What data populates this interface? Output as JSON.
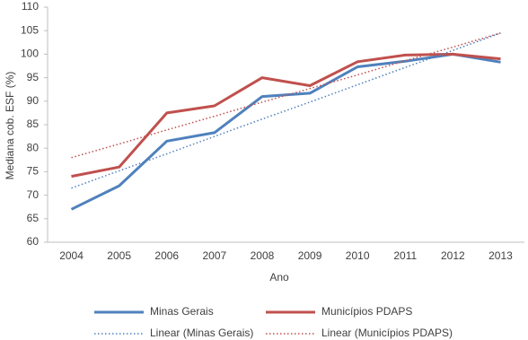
{
  "chart_data": {
    "type": "line",
    "x_label": "Ano",
    "y_label": "Mediana cob. ESF (%)",
    "categories": [
      "2004",
      "2005",
      "2006",
      "2007",
      "2008",
      "2009",
      "2010",
      "2011",
      "2012",
      "2013"
    ],
    "series": [
      {
        "name": "Minas Gerais",
        "color": "#4f81bd",
        "dotted": false,
        "values": [
          67,
          72,
          81.5,
          83.3,
          91,
          91.7,
          97.3,
          98.5,
          100,
          98.3
        ]
      },
      {
        "name": "Municípios PDAPS",
        "color": "#c0504d",
        "dotted": false,
        "values": [
          74,
          76,
          87.5,
          89,
          95,
          93.3,
          98.4,
          99.8,
          100,
          99
        ]
      },
      {
        "name": "Linear (Minas Gerais)",
        "color": "#4f81bd",
        "dotted": true,
        "values": [
          71.5,
          75.2,
          78.8,
          82.5,
          86.2,
          89.8,
          93.5,
          97.2,
          100.8,
          104.5
        ]
      },
      {
        "name": "Linear (Municípios PDAPS)",
        "color": "#c0504d",
        "dotted": true,
        "values": [
          78,
          80.9,
          83.9,
          86.8,
          89.8,
          92.7,
          95.6,
          98.6,
          101.5,
          104.5
        ]
      }
    ],
    "ylim": [
      60,
      110
    ],
    "yticks": [
      60,
      65,
      70,
      75,
      80,
      85,
      90,
      95,
      100,
      105,
      110
    ],
    "grid": false
  }
}
